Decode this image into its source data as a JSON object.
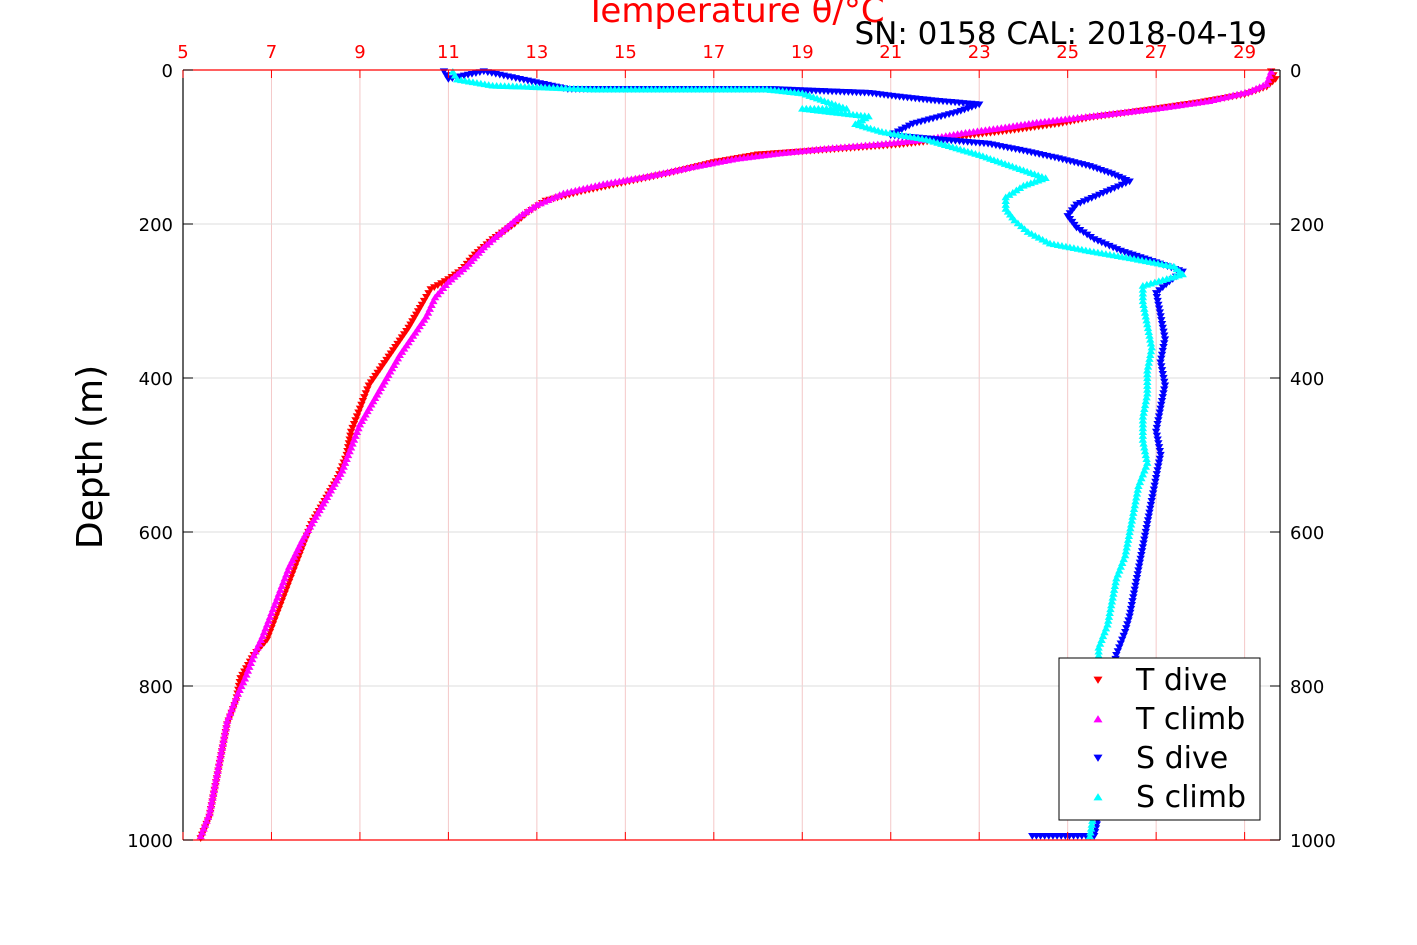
{
  "chart_data": {
    "type": "scatter",
    "title": "Temperature θ/°C",
    "subtitle": "SN: 0158  CAL: 2018-04-19",
    "xlabel": "Temperature θ/°C",
    "ylabel": "Depth (m)",
    "xlim": [
      5,
      29.8
    ],
    "ylim": [
      0,
      1000
    ],
    "y_reversed": true,
    "x_ticks": [
      5,
      7,
      9,
      11,
      13,
      15,
      17,
      19,
      21,
      23,
      25,
      27,
      29
    ],
    "x_tick_labels": [
      "5",
      "7",
      "9",
      "11",
      "13",
      "15",
      "17",
      "19",
      "21",
      "23",
      "25",
      "27",
      "29"
    ],
    "y_ticks": [
      0,
      200,
      400,
      600,
      800,
      1000
    ],
    "y_tick_labels": [
      "0",
      "200",
      "400",
      "600",
      "800",
      "1000"
    ],
    "grid": true,
    "legend_position": "bottom-right",
    "colors": {
      "axis_top": "#ff0000",
      "grid_x": "#f4c8c8",
      "grid_y": "#dddddd"
    },
    "series": [
      {
        "name": "T dive",
        "color": "#ff0000",
        "marker": "triangle-down",
        "points": [
          [
            29.6,
            2
          ],
          [
            29.7,
            12
          ],
          [
            29.5,
            22
          ],
          [
            29.0,
            32
          ],
          [
            28.0,
            42
          ],
          [
            26.8,
            52
          ],
          [
            25.5,
            62
          ],
          [
            24.8,
            70
          ],
          [
            23.8,
            78
          ],
          [
            22.8,
            85
          ],
          [
            22.0,
            92
          ],
          [
            21.2,
            97
          ],
          [
            20.0,
            102
          ],
          [
            19.0,
            106
          ],
          [
            18.0,
            110
          ],
          [
            17.0,
            120
          ],
          [
            16.0,
            134
          ],
          [
            15.0,
            146
          ],
          [
            14.0,
            158
          ],
          [
            13.2,
            170
          ],
          [
            12.8,
            185
          ],
          [
            12.5,
            200
          ],
          [
            12.0,
            220
          ],
          [
            11.6,
            240
          ],
          [
            11.3,
            260
          ],
          [
            11.0,
            272
          ],
          [
            10.6,
            285
          ],
          [
            10.4,
            305
          ],
          [
            10.1,
            335
          ],
          [
            9.8,
            360
          ],
          [
            9.5,
            385
          ],
          [
            9.2,
            410
          ],
          [
            9.0,
            440
          ],
          [
            8.8,
            470
          ],
          [
            8.7,
            500
          ],
          [
            8.5,
            530
          ],
          [
            8.2,
            560
          ],
          [
            7.9,
            590
          ],
          [
            7.7,
            620
          ],
          [
            7.5,
            650
          ],
          [
            7.3,
            680
          ],
          [
            7.1,
            710
          ],
          [
            6.9,
            740
          ],
          [
            6.6,
            760
          ],
          [
            6.3,
            790
          ],
          [
            6.2,
            820
          ],
          [
            6.0,
            850
          ],
          [
            5.9,
            880
          ],
          [
            5.8,
            910
          ],
          [
            5.7,
            940
          ],
          [
            5.6,
            970
          ],
          [
            5.4,
            998
          ]
        ]
      },
      {
        "name": "T climb",
        "color": "#ff00ff",
        "marker": "triangle-up",
        "points": [
          [
            29.6,
            2
          ],
          [
            29.5,
            18
          ],
          [
            29.1,
            28
          ],
          [
            28.2,
            40
          ],
          [
            27.0,
            50
          ],
          [
            25.5,
            60
          ],
          [
            24.3,
            68
          ],
          [
            23.5,
            75
          ],
          [
            22.6,
            82
          ],
          [
            21.8,
            90
          ],
          [
            20.8,
            96
          ],
          [
            19.5,
            102
          ],
          [
            18.5,
            108
          ],
          [
            17.5,
            115
          ],
          [
            16.5,
            126
          ],
          [
            15.5,
            138
          ],
          [
            14.5,
            148
          ],
          [
            13.6,
            160
          ],
          [
            13.0,
            175
          ],
          [
            12.6,
            190
          ],
          [
            12.2,
            210
          ],
          [
            11.8,
            230
          ],
          [
            11.4,
            255
          ],
          [
            11.0,
            275
          ],
          [
            10.7,
            295
          ],
          [
            10.5,
            320
          ],
          [
            10.2,
            345
          ],
          [
            9.9,
            370
          ],
          [
            9.6,
            400
          ],
          [
            9.3,
            430
          ],
          [
            9.0,
            460
          ],
          [
            8.8,
            490
          ],
          [
            8.6,
            520
          ],
          [
            8.3,
            550
          ],
          [
            8.0,
            580
          ],
          [
            7.7,
            610
          ],
          [
            7.4,
            645
          ],
          [
            7.2,
            675
          ],
          [
            7.0,
            705
          ],
          [
            6.8,
            735
          ],
          [
            6.6,
            760
          ],
          [
            6.4,
            790
          ],
          [
            6.2,
            815
          ],
          [
            6.0,
            845
          ],
          [
            5.9,
            875
          ],
          [
            5.8,
            905
          ],
          [
            5.7,
            935
          ],
          [
            5.6,
            965
          ],
          [
            5.4,
            995
          ]
        ]
      },
      {
        "name": "S dive",
        "color": "#0000ff",
        "marker": "triangle-down",
        "points": [
          [
            10.9,
            2
          ],
          [
            11.0,
            12
          ],
          [
            11.8,
            2
          ],
          [
            13.7,
            25
          ],
          [
            18.3,
            25
          ],
          [
            20.5,
            30
          ],
          [
            21.2,
            35
          ],
          [
            22.0,
            40
          ],
          [
            23.0,
            45
          ],
          [
            22.5,
            55
          ],
          [
            21.5,
            70
          ],
          [
            21.0,
            85
          ],
          [
            22.0,
            90
          ],
          [
            23.2,
            96
          ],
          [
            24.0,
            105
          ],
          [
            24.8,
            115
          ],
          [
            25.5,
            125
          ],
          [
            26.0,
            135
          ],
          [
            26.4,
            145
          ],
          [
            25.8,
            160
          ],
          [
            25.2,
            175
          ],
          [
            25.0,
            190
          ],
          [
            25.2,
            205
          ],
          [
            25.6,
            220
          ],
          [
            26.2,
            235
          ],
          [
            27.0,
            250
          ],
          [
            27.6,
            262
          ],
          [
            27.3,
            275
          ],
          [
            27.0,
            290
          ],
          [
            27.1,
            320
          ],
          [
            27.2,
            350
          ],
          [
            27.1,
            380
          ],
          [
            27.2,
            410
          ],
          [
            27.1,
            440
          ],
          [
            27.0,
            470
          ],
          [
            27.1,
            500
          ],
          [
            27.0,
            530
          ],
          [
            26.9,
            560
          ],
          [
            26.8,
            590
          ],
          [
            26.7,
            620
          ],
          [
            26.6,
            650
          ],
          [
            26.5,
            680
          ],
          [
            26.4,
            710
          ],
          [
            26.3,
            730
          ],
          [
            26.1,
            760
          ],
          [
            26.0,
            790
          ],
          [
            25.9,
            820
          ],
          [
            25.8,
            850
          ],
          [
            25.8,
            880
          ],
          [
            25.8,
            910
          ],
          [
            25.8,
            940
          ],
          [
            25.7,
            970
          ],
          [
            25.6,
            995
          ],
          [
            24.2,
            995
          ]
        ]
      },
      {
        "name": "S climb",
        "color": "#00ffff",
        "marker": "triangle-up",
        "points": [
          [
            11.1,
            2
          ],
          [
            11.2,
            12
          ],
          [
            12.0,
            20
          ],
          [
            13.0,
            22
          ],
          [
            14.3,
            25
          ],
          [
            15.5,
            25
          ],
          [
            16.5,
            25
          ],
          [
            18.2,
            25
          ],
          [
            19.0,
            30
          ],
          [
            19.5,
            40
          ],
          [
            20.0,
            50
          ],
          [
            19.0,
            50
          ],
          [
            20.5,
            60
          ],
          [
            20.2,
            70
          ],
          [
            20.8,
            80
          ],
          [
            21.8,
            90
          ],
          [
            22.4,
            100
          ],
          [
            23.0,
            110
          ],
          [
            23.5,
            120
          ],
          [
            24.0,
            130
          ],
          [
            24.5,
            140
          ],
          [
            24.0,
            150
          ],
          [
            23.6,
            165
          ],
          [
            23.6,
            180
          ],
          [
            23.8,
            195
          ],
          [
            24.1,
            210
          ],
          [
            24.6,
            225
          ],
          [
            25.5,
            235
          ],
          [
            26.5,
            245
          ],
          [
            27.4,
            255
          ],
          [
            27.6,
            265
          ],
          [
            26.7,
            280
          ],
          [
            26.7,
            300
          ],
          [
            26.8,
            330
          ],
          [
            26.9,
            360
          ],
          [
            26.8,
            390
          ],
          [
            26.8,
            420
          ],
          [
            26.7,
            450
          ],
          [
            26.7,
            480
          ],
          [
            26.8,
            510
          ],
          [
            26.6,
            540
          ],
          [
            26.5,
            570
          ],
          [
            26.4,
            600
          ],
          [
            26.3,
            630
          ],
          [
            26.1,
            660
          ],
          [
            26.0,
            690
          ],
          [
            25.9,
            720
          ],
          [
            25.7,
            750
          ],
          [
            25.7,
            780
          ],
          [
            25.7,
            810
          ],
          [
            25.7,
            840
          ],
          [
            25.7,
            870
          ],
          [
            25.7,
            900
          ],
          [
            25.7,
            930
          ],
          [
            25.6,
            960
          ],
          [
            25.5,
            995
          ]
        ]
      }
    ]
  }
}
